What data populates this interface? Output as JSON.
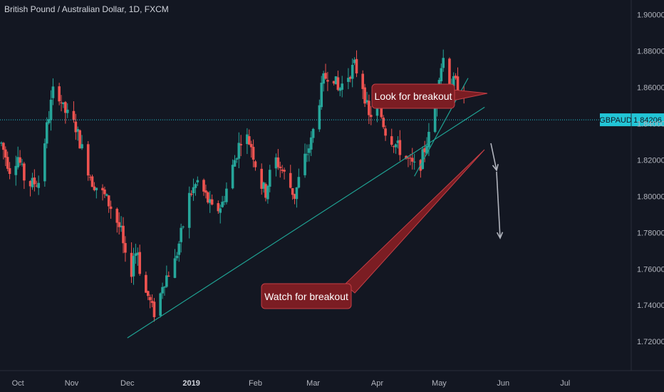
{
  "header": {
    "title": "British Pound / Australian Dollar, 1D, FXCM"
  },
  "colors": {
    "background": "#131722",
    "up": "#26a69a",
    "down": "#ef5350",
    "trendline": "#1fa394",
    "callout": "#7b1d23",
    "price_line": "#22c5d6",
    "arrow": "#b2b5be"
  },
  "price_label": {
    "symbol": "GBPAUD",
    "value": "1.84206"
  },
  "annotations": {
    "look": "Look for breakout",
    "watch": "Watch for breakout"
  },
  "chart_data": {
    "type": "candlestick",
    "title": "British Pound / Australian Dollar, 1D, FXCM",
    "xlabel": "",
    "ylabel": "",
    "ylim": [
      1.704,
      1.908
    ],
    "yticks": [
      "1.90000",
      "1.88000",
      "1.86000",
      "1.84000",
      "1.82000",
      "1.80000",
      "1.78000",
      "1.76000",
      "1.74000",
      "1.72000"
    ],
    "ytick_values": [
      1.9,
      1.88,
      1.86,
      1.84,
      1.82,
      1.8,
      1.78,
      1.76,
      1.74,
      1.72
    ],
    "xticks": [
      "Oct",
      "Nov",
      "Dec",
      "2019",
      "Feb",
      "Mar",
      "Apr",
      "May",
      "Jun",
      "Jul"
    ],
    "xtick_bold": [
      false,
      false,
      false,
      true,
      false,
      false,
      false,
      false,
      false,
      false
    ],
    "xtick_days": [
      8,
      34,
      61,
      92,
      123,
      151,
      182,
      212,
      243,
      273
    ],
    "grid": false,
    "current_price": 1.84206,
    "candle_anchors": [
      [
        0,
        1.829
      ],
      [
        4,
        1.815
      ],
      [
        8,
        1.822
      ],
      [
        12,
        1.806
      ],
      [
        18,
        1.808
      ],
      [
        22,
        1.838
      ],
      [
        26,
        1.864
      ],
      [
        30,
        1.848
      ],
      [
        36,
        1.838
      ],
      [
        40,
        1.822
      ],
      [
        44,
        1.808
      ],
      [
        50,
        1.8
      ],
      [
        54,
        1.792
      ],
      [
        58,
        1.78
      ],
      [
        62,
        1.75
      ],
      [
        64,
        1.768
      ],
      [
        66,
        1.77
      ],
      [
        68,
        1.75
      ],
      [
        71,
        1.745
      ],
      [
        73,
        1.738
      ],
      [
        75,
        1.734
      ],
      [
        78,
        1.752
      ],
      [
        84,
        1.764
      ],
      [
        88,
        1.784
      ],
      [
        91,
        1.8
      ],
      [
        95,
        1.808
      ],
      [
        99,
        1.8
      ],
      [
        103,
        1.79
      ],
      [
        107,
        1.796
      ],
      [
        110,
        1.808
      ],
      [
        113,
        1.82
      ],
      [
        117,
        1.836
      ],
      [
        121,
        1.828
      ],
      [
        125,
        1.808
      ],
      [
        128,
        1.802
      ],
      [
        132,
        1.822
      ],
      [
        135,
        1.816
      ],
      [
        138,
        1.81
      ],
      [
        142,
        1.8
      ],
      [
        146,
        1.818
      ],
      [
        150,
        1.83
      ],
      [
        153,
        1.848
      ],
      [
        156,
        1.864
      ],
      [
        160,
        1.87
      ],
      [
        163,
        1.858
      ],
      [
        167,
        1.865
      ],
      [
        171,
        1.872
      ],
      [
        175,
        1.861
      ],
      [
        178,
        1.843
      ],
      [
        182,
        1.852
      ],
      [
        186,
        1.836
      ],
      [
        190,
        1.83
      ],
      [
        194,
        1.824
      ],
      [
        198,
        1.818
      ],
      [
        202,
        1.814
      ],
      [
        206,
        1.83
      ],
      [
        209,
        1.838
      ],
      [
        212,
        1.868
      ],
      [
        214,
        1.876
      ],
      [
        216,
        1.864
      ],
      [
        220,
        1.862
      ],
      [
        224,
        1.858
      ]
    ],
    "lines": [
      {
        "name": "",
        "points": [
          [
            61,
            1.722
          ],
          [
            234,
            1.849
          ]
        ]
      },
      {
        "name": "",
        "points": [
          [
            200,
            1.811
          ],
          [
            226,
            1.865
          ]
        ]
      }
    ],
    "price_line": 1.84206
  }
}
